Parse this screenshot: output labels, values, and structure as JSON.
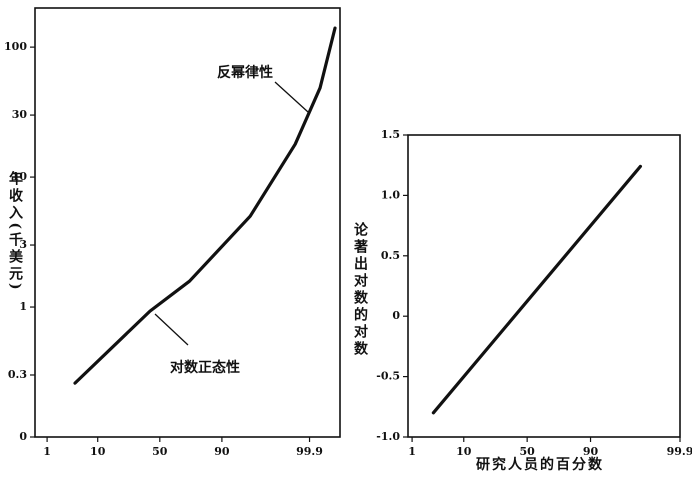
{
  "chart_data": [
    {
      "type": "line",
      "xscale": "probability",
      "yscale": "log",
      "ylabel": "年收入(千美元)",
      "annotations": [
        "反幂律性",
        "对数正态性"
      ],
      "x": [
        4,
        42,
        73,
        96.9,
        99.74,
        99.953,
        99.985
      ],
      "series": [
        {
          "color": "#111111",
          "values": [
            0.26,
            0.93,
            1.58,
            5.0,
            17.9,
            48.6,
            140
          ]
        }
      ],
      "xlim": [
        0.5,
        99.99
      ],
      "xticks": [
        1,
        10,
        50,
        90,
        99.9
      ],
      "ylim": [
        0.1,
        200
      ],
      "yticks": [
        {
          "value": 0.1,
          "label": "0"
        },
        0.3,
        1,
        3,
        10,
        30,
        100
      ]
    },
    {
      "type": "line",
      "xscale": "probability",
      "yscale": "linear",
      "xlabel": "研究人员的百分数",
      "ylabel": "论著出对数的对数",
      "x": [
        2.9,
        98.9
      ],
      "series": [
        {
          "color": "#111111",
          "values": [
            -0.8,
            1.24
          ]
        }
      ],
      "xlim": [
        0.8,
        99.9
      ],
      "xticks": [
        1,
        10,
        50,
        90,
        99.9
      ],
      "ylim": [
        -1.0,
        1.5
      ],
      "yticks": [
        {
          "value": -1.0,
          "label": "-1.0"
        },
        -0.5,
        0,
        0.5,
        {
          "value": 1.0,
          "label": "1.0"
        },
        1.5
      ]
    }
  ]
}
